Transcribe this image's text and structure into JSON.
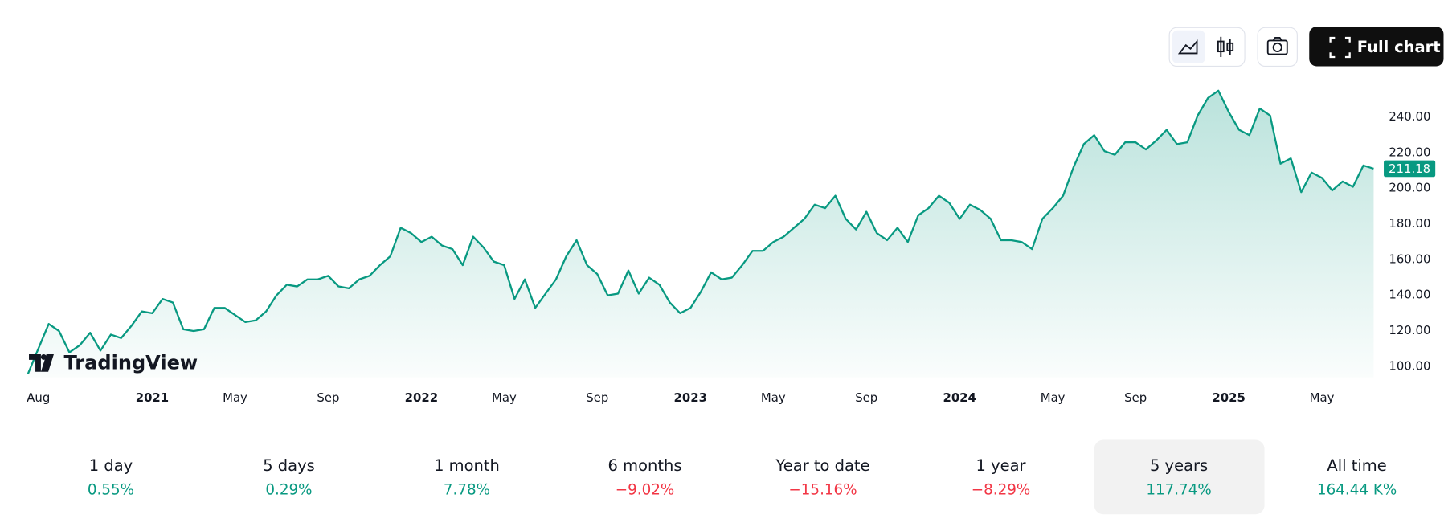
{
  "chart_data": {
    "type": "area",
    "categories": [
      null,
      "Aug",
      null,
      null,
      null,
      null,
      null,
      null,
      null,
      null,
      null,
      null,
      "2021",
      null,
      null,
      null,
      null,
      null,
      null,
      null,
      "May",
      null,
      null,
      null,
      null,
      null,
      null,
      null,
      null,
      "Sep",
      null,
      null,
      null,
      null,
      null,
      null,
      null,
      null,
      "2022",
      null,
      null,
      null,
      null,
      null,
      null,
      null,
      "May",
      null,
      null,
      null,
      null,
      null,
      null,
      null,
      null,
      "Sep",
      null,
      null,
      null,
      null,
      null,
      null,
      null,
      null,
      "2023",
      null,
      null,
      null,
      null,
      null,
      null,
      null,
      "May",
      null,
      null,
      null,
      null,
      null,
      null,
      null,
      null,
      "Sep",
      null,
      null,
      null,
      null,
      null,
      null,
      null,
      null,
      "2024",
      null,
      null,
      null,
      null,
      null,
      null,
      null,
      null,
      "May",
      null,
      null,
      null,
      null,
      null,
      null,
      null,
      "Sep",
      null,
      null,
      null,
      null,
      null,
      null,
      null,
      null,
      "2025",
      null,
      null,
      null,
      null,
      null,
      null,
      null,
      null,
      "May",
      null,
      null,
      null,
      null,
      null
    ],
    "values": [
      96,
      110,
      124,
      120,
      108,
      112,
      119,
      109,
      118,
      116,
      123,
      131,
      130,
      138,
      136,
      121,
      120,
      121,
      133,
      133,
      129,
      125,
      126,
      131,
      140,
      146,
      145,
      149,
      149,
      151,
      145,
      144,
      149,
      151,
      157,
      162,
      178,
      175,
      170,
      173,
      168,
      166,
      157,
      173,
      167,
      159,
      157,
      138,
      149,
      133,
      141,
      149,
      162,
      171,
      157,
      152,
      140,
      141,
      154,
      141,
      150,
      146,
      136,
      130,
      133,
      142,
      153,
      149,
      150,
      157,
      165,
      165,
      170,
      173,
      178,
      183,
      191,
      189,
      196,
      183,
      177,
      187,
      175,
      171,
      178,
      170,
      185,
      189,
      196,
      192,
      183,
      191,
      188,
      183,
      171,
      171,
      170,
      166,
      183,
      189,
      196,
      212,
      225,
      230,
      221,
      219,
      226,
      226,
      222,
      227,
      233,
      225,
      226,
      241,
      251,
      255,
      243,
      233,
      230,
      245,
      241,
      214,
      217,
      198,
      209,
      206,
      199,
      204,
      201,
      213,
      211.18
    ],
    "color": "#089981",
    "ylim": [
      94,
      262
    ],
    "yticks": [
      {
        "value": 100,
        "label": "100.00"
      },
      {
        "value": 120,
        "label": "120.00"
      },
      {
        "value": 140,
        "label": "140.00"
      },
      {
        "value": 160,
        "label": "160.00"
      },
      {
        "value": 180,
        "label": "180.00"
      },
      {
        "value": 200,
        "label": "200.00"
      },
      {
        "value": 220,
        "label": "220.00"
      },
      {
        "value": 240,
        "label": "240.00"
      }
    ],
    "grid": false
  },
  "logo": "TradingView",
  "toolbar": {
    "full_chart": "Full chart"
  },
  "periods": [
    {
      "label": "1 day",
      "change": "0.55%"
    },
    {
      "label": "5 days",
      "change": "0.29%"
    },
    {
      "label": "1 month",
      "change": "7.78%"
    },
    {
      "label": "6 months",
      "change": "−9.02%"
    },
    {
      "label": "Year to date",
      "change": "−15.16%"
    },
    {
      "label": "1 year",
      "change": "−8.29%"
    },
    {
      "label": "5 years",
      "change": "117.74%"
    },
    {
      "label": "All time",
      "change": "164.44 K%"
    }
  ],
  "selected_period": 6
}
